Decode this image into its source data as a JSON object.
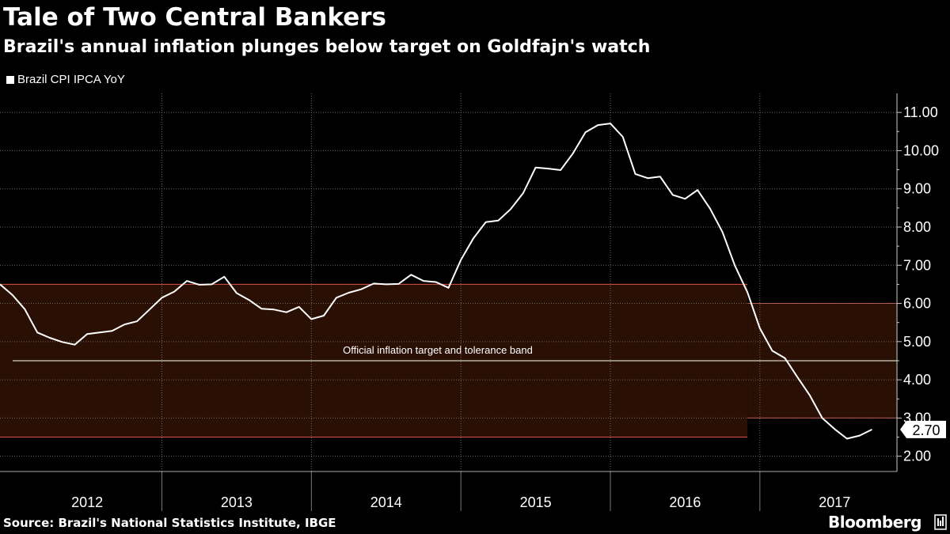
{
  "header": {
    "title": "Tale of Two Central Bankers",
    "subtitle": "Brazil's annual inflation plunges below target on Goldfajn's watch"
  },
  "footer": {
    "source": "Source: Brazil's National Statistics Institute, IBGE",
    "brand": "Bloomberg"
  },
  "colors": {
    "background": "#000000",
    "line": "#ffffff",
    "band_fill": "#2a0f05",
    "band_edge": "#d9534a",
    "grid": "#6a6a6a"
  },
  "chart_data": {
    "type": "line",
    "title": "Tale of Two Central Bankers",
    "subtitle": "Brazil's annual inflation plunges below target on Goldfajn's watch",
    "legend": [
      "Brazil CPI IPCA YoY"
    ],
    "legend_position": "top-left",
    "xlabel": "",
    "ylabel": "",
    "x_range": [
      2011.917,
      2017.917
    ],
    "ylim": [
      1.6,
      11.5
    ],
    "y_ticks": [
      2.0,
      3.0,
      4.0,
      5.0,
      6.0,
      7.0,
      8.0,
      9.0,
      10.0,
      11.0
    ],
    "y_tick_labels": [
      "2.00",
      "3.00",
      "4.00",
      "5.00",
      "6.00",
      "7.00",
      "8.00",
      "9.00",
      "10.00",
      "11.00"
    ],
    "year_labels": [
      "2012",
      "2013",
      "2014",
      "2015",
      "2016",
      "2017"
    ],
    "year_label_positions": [
      2012.5,
      2013.5,
      2014.5,
      2015.5,
      2016.5,
      2017.5
    ],
    "year_dividers": [
      2013.0,
      2014.0,
      2015.0,
      2016.0,
      2017.0
    ],
    "last_value_label": "2.70",
    "series": [
      {
        "name": "Brazil CPI IPCA YoY",
        "x": [
          2011.917,
          2012.0,
          2012.083,
          2012.167,
          2012.25,
          2012.333,
          2012.417,
          2012.5,
          2012.583,
          2012.667,
          2012.75,
          2012.833,
          2012.917,
          2013.0,
          2013.083,
          2013.167,
          2013.25,
          2013.333,
          2013.417,
          2013.5,
          2013.583,
          2013.667,
          2013.75,
          2013.833,
          2013.917,
          2014.0,
          2014.083,
          2014.167,
          2014.25,
          2014.333,
          2014.417,
          2014.5,
          2014.583,
          2014.667,
          2014.75,
          2014.833,
          2014.917,
          2015.0,
          2015.083,
          2015.167,
          2015.25,
          2015.333,
          2015.417,
          2015.5,
          2015.583,
          2015.667,
          2015.75,
          2015.833,
          2015.917,
          2016.0,
          2016.083,
          2016.167,
          2016.25,
          2016.333,
          2016.417,
          2016.5,
          2016.583,
          2016.667,
          2016.75,
          2016.833,
          2016.917,
          2017.0,
          2017.083,
          2017.167,
          2017.25,
          2017.333,
          2017.417,
          2017.5,
          2017.583,
          2017.667,
          2017.75
        ],
        "values": [
          6.5,
          6.22,
          5.85,
          5.24,
          5.1,
          4.99,
          4.92,
          5.2,
          5.24,
          5.28,
          5.45,
          5.53,
          5.84,
          6.15,
          6.31,
          6.59,
          6.49,
          6.5,
          6.7,
          6.27,
          6.09,
          5.86,
          5.84,
          5.77,
          5.91,
          5.59,
          5.68,
          6.15,
          6.28,
          6.37,
          6.52,
          6.5,
          6.51,
          6.75,
          6.59,
          6.56,
          6.41,
          7.14,
          7.7,
          8.13,
          8.17,
          8.47,
          8.89,
          9.56,
          9.53,
          9.49,
          9.93,
          10.48,
          10.67,
          10.71,
          10.36,
          9.39,
          9.28,
          9.32,
          8.84,
          8.74,
          8.97,
          8.48,
          7.87,
          6.99,
          6.29,
          5.35,
          4.76,
          4.57,
          4.08,
          3.6,
          3.0,
          2.71,
          2.46,
          2.54,
          2.7
        ]
      }
    ],
    "annotations": [
      {
        "text": "Official inflation target and tolerance band",
        "bands": [
          {
            "x_start": 2011.917,
            "x_end": 2016.917,
            "y_low": 2.5,
            "y_high": 6.5,
            "center": 4.5
          },
          {
            "x_start": 2016.917,
            "x_end": 2017.917,
            "y_low": 3.0,
            "y_high": 6.0,
            "center": 4.5
          }
        ]
      }
    ],
    "grid": true
  }
}
